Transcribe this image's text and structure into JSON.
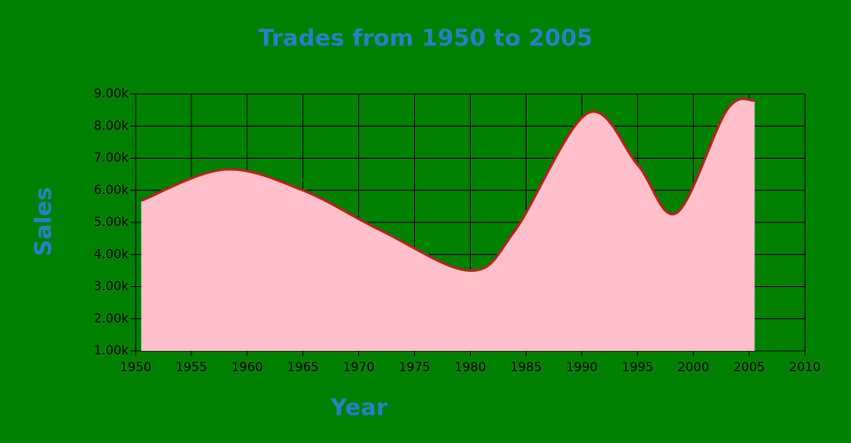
{
  "chart_data": {
    "type": "area",
    "title": "Trades from 1950 to 2005",
    "x_label": "Year",
    "y_label": "Sales",
    "x": [
      1950.5,
      1958,
      1965,
      1972,
      1980,
      1984,
      1990.5,
      1995,
      1998.5,
      2003,
      2005.5
    ],
    "values": [
      5680,
      6650,
      6000,
      4750,
      3500,
      4750,
      8400,
      6800,
      5300,
      8500,
      8800
    ],
    "color": "#ffc0cb",
    "line_color": "#b22222",
    "xlim": [
      1950,
      2010
    ],
    "xticks": [
      1950,
      1955,
      1960,
      1965,
      1970,
      1975,
      1980,
      1985,
      1990,
      1995,
      2000,
      2005,
      2010
    ],
    "ylim": [
      1000,
      9000
    ],
    "yticks": [
      {
        "value": 1000,
        "label": "1.00k"
      },
      {
        "value": 2000,
        "label": "2.00k"
      },
      {
        "value": 3000,
        "label": "3.00k"
      },
      {
        "value": 4000,
        "label": "4.00k"
      },
      {
        "value": 5000,
        "label": "5.00k"
      },
      {
        "value": 6000,
        "label": "6.00k"
      },
      {
        "value": 7000,
        "label": "7.00k"
      },
      {
        "value": 8000,
        "label": "8.00k"
      },
      {
        "value": 9000,
        "label": "9.00k"
      }
    ],
    "grid": true
  }
}
